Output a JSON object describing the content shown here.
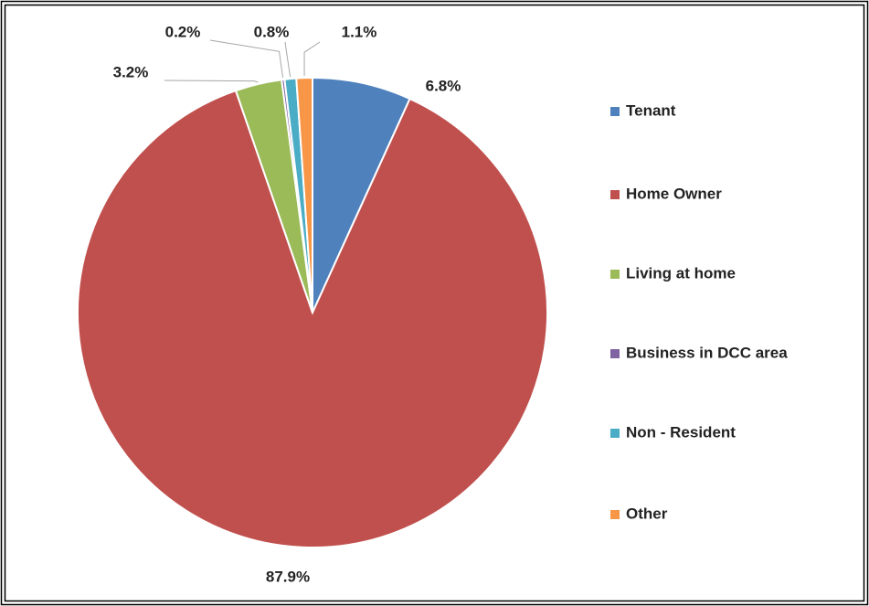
{
  "chart_data": {
    "type": "pie",
    "categories": [
      "Tenant",
      "Home Owner",
      "Living at home",
      "Business in DCC area",
      "Non - Resident",
      "Other"
    ],
    "values": [
      6.8,
      87.9,
      3.2,
      0.2,
      0.8,
      1.1
    ],
    "value_labels": [
      "6.8%",
      "87.9%",
      "3.2%",
      "0.2%",
      "0.8%",
      "1.1%"
    ],
    "colors": [
      "#4f81bd",
      "#c0504d",
      "#9bbb59",
      "#8064a2",
      "#4bacc6",
      "#f79646"
    ],
    "legend": "right"
  }
}
